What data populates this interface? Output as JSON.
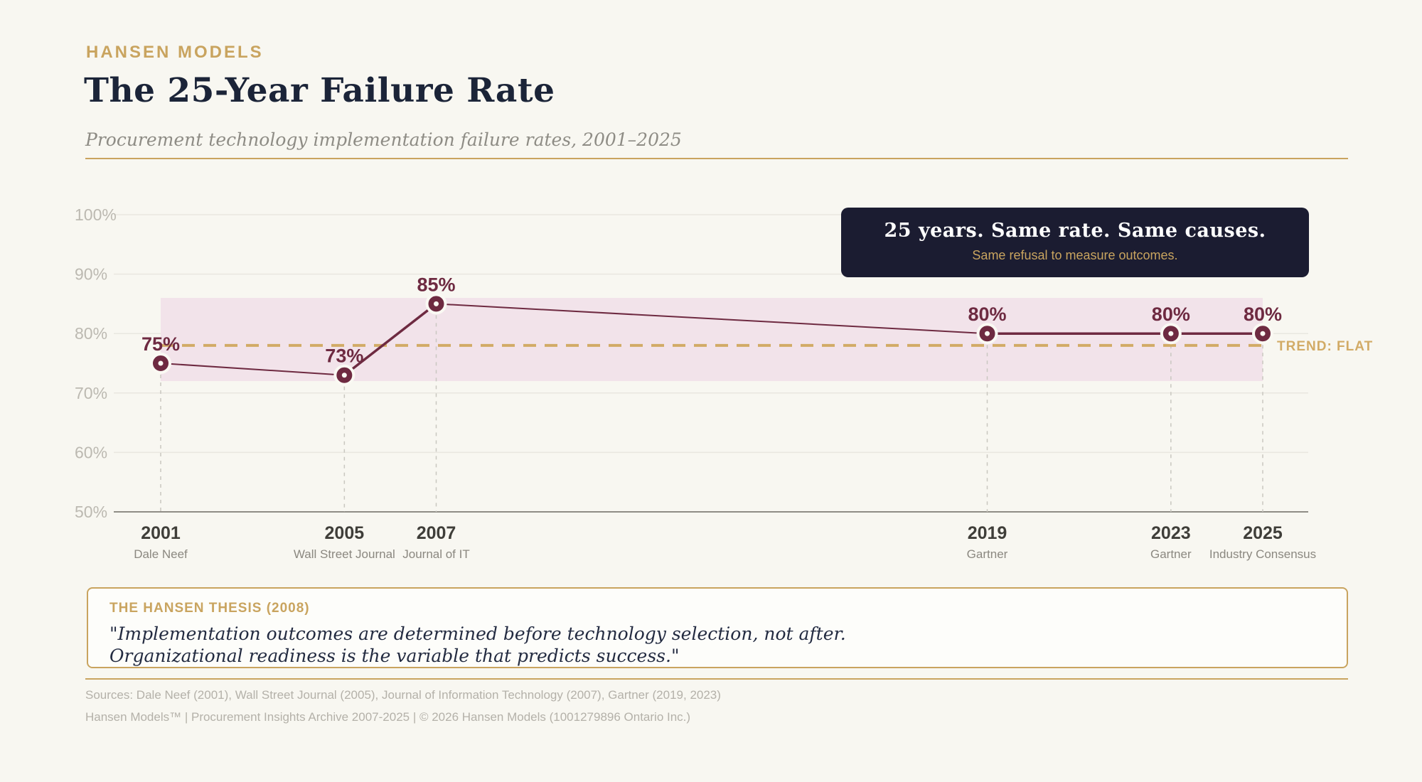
{
  "header": {
    "eyebrow": "HANSEN MODELS",
    "title": "The 25-Year Failure Rate",
    "subtitle": "Procurement technology implementation failure rates, 2001–2025"
  },
  "callout": {
    "title": "25 years. Same rate. Same causes.",
    "subtitle": "Same refusal to measure outcomes."
  },
  "chart_data": {
    "type": "line",
    "categories": [
      "2001",
      "2005",
      "2007",
      "2019",
      "2023",
      "2025"
    ],
    "category_sources": [
      "Dale Neef",
      "Wall Street Journal",
      "Journal of IT",
      "Gartner",
      "Gartner",
      "Industry Consensus"
    ],
    "x_numeric": [
      2001,
      2005,
      2007,
      2019,
      2023,
      2025
    ],
    "series": [
      {
        "name": "Implementation failure rate",
        "values": [
          75,
          73,
          85,
          80,
          80,
          80
        ]
      }
    ],
    "value_labels": [
      "75%",
      "73%",
      "85%",
      "80%",
      "80%",
      "80%"
    ],
    "ylim": [
      50,
      100
    ],
    "yticks": [
      100,
      90,
      80,
      70,
      60,
      50
    ],
    "ytick_suffix": "%",
    "band": {
      "from": 72,
      "to": 86
    },
    "trend": {
      "value": 78,
      "label": "TREND: FLAT"
    },
    "grid": true,
    "legend_position": "none",
    "emphasis_segments": [
      [
        1,
        2
      ],
      [
        3,
        4,
        5
      ]
    ],
    "colors": {
      "line": "#6e2a41",
      "marker": "#6e2a41",
      "marker_ring": "#faf9f3",
      "band": "#f2e3ea",
      "trend": "#d2ab66",
      "grid": "#e9e7e0",
      "axis_baseline": "#8f8d86",
      "tick_label": "#bcb9b1",
      "value_label": "#6e2a41",
      "year_label": "#3f3e39",
      "source_label": "#8b8880",
      "dash_guide": "#c9c7c0"
    }
  },
  "thesis": {
    "heading": "THE HANSEN THESIS (2008)",
    "line1": "\"Implementation outcomes are determined before technology selection, not after.",
    "line2": "Organizational readiness is the variable that predicts success.\""
  },
  "footer": {
    "sources": "Sources: Dale Neef (2001), Wall Street Journal (2005), Journal of Information Technology (2007), Gartner (2019, 2023)",
    "meta": "Hansen Models™  |  Procurement Insights Archive 2007-2025  |  © 2026 Hansen Models (1001279896 Ontario Inc.)"
  },
  "colors": {
    "background": "#f8f7f1",
    "accent_gold": "#c9a45f",
    "ink_navy": "#1b2438",
    "callout_bg": "#1b1c31",
    "subtitle_gray": "#8e8c85",
    "footer_gray": "#b4b1a9"
  }
}
